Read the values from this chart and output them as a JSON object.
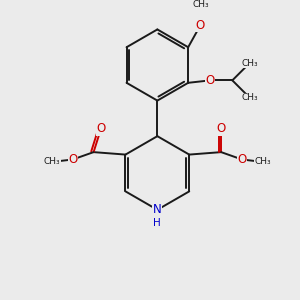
{
  "bg": "#ebebeb",
  "bc": "#1a1a1a",
  "oc": "#cc0000",
  "nc": "#0000cc",
  "lw": 1.4,
  "fs": 7.0,
  "xlim": [
    -2.5,
    9.5
  ],
  "ylim": [
    -1.5,
    9.5
  ]
}
